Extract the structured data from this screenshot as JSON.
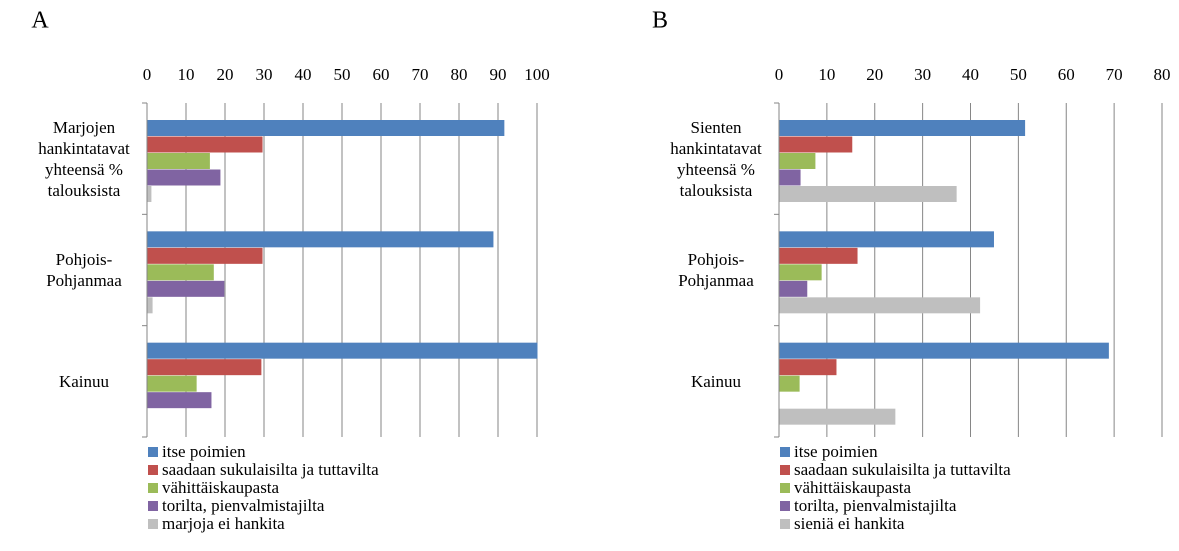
{
  "chart_data": [
    {
      "type": "hbar",
      "title": "A",
      "categories": [
        "Marjojen hankintatavat yhteensä % talouksista",
        "Pohjois-Pohjanmaa",
        "Kainuu"
      ],
      "series": [
        {
          "name": "itse poimien",
          "color": "#4f81bd",
          "values": [
            91.5,
            88.7,
            100
          ]
        },
        {
          "name": "saadaan sukulaisilta ja tuttavilta",
          "color": "#c0504d",
          "values": [
            29.5,
            29.5,
            29.2
          ]
        },
        {
          "name": "vähittäiskaupasta",
          "color": "#9bbb59",
          "values": [
            16,
            17,
            12.6
          ]
        },
        {
          "name": "torilta, pienvalmistajilta",
          "color": "#8064a2",
          "values": [
            18.7,
            19.7,
            16.4
          ]
        },
        {
          "name": "marjoja ei hankita",
          "color": "#bfbfbf",
          "values": [
            1,
            1.3,
            0
          ]
        }
      ],
      "xlim": [
        0,
        100
      ],
      "xticks": [
        0,
        10,
        20,
        30,
        40,
        50,
        60,
        70,
        80,
        90,
        100
      ],
      "grid": true
    },
    {
      "type": "hbar",
      "title": "B",
      "categories": [
        "Sienten hankintatavat yhteensä % talouksista",
        "Pohjois-Pohjanmaa",
        "Kainuu"
      ],
      "series": [
        {
          "name": "itse poimien",
          "color": "#4f81bd",
          "values": [
            51.3,
            44.8,
            68.8
          ]
        },
        {
          "name": "saadaan sukulaisilta ja tuttavilta",
          "color": "#c0504d",
          "values": [
            15.2,
            16.3,
            11.9
          ]
        },
        {
          "name": "vähittäiskaupasta",
          "color": "#9bbb59",
          "values": [
            7.5,
            8.8,
            4.2
          ]
        },
        {
          "name": "torilta, pienvalmistajilta",
          "color": "#8064a2",
          "values": [
            4.4,
            5.8,
            0
          ]
        },
        {
          "name": "sieniä ei hankita",
          "color": "#bfbfbf",
          "values": [
            37,
            41.9,
            24.2
          ]
        }
      ],
      "xlim": [
        0,
        80
      ],
      "xticks": [
        0,
        10,
        20,
        30,
        40,
        50,
        60,
        70,
        80
      ],
      "grid": true
    }
  ]
}
